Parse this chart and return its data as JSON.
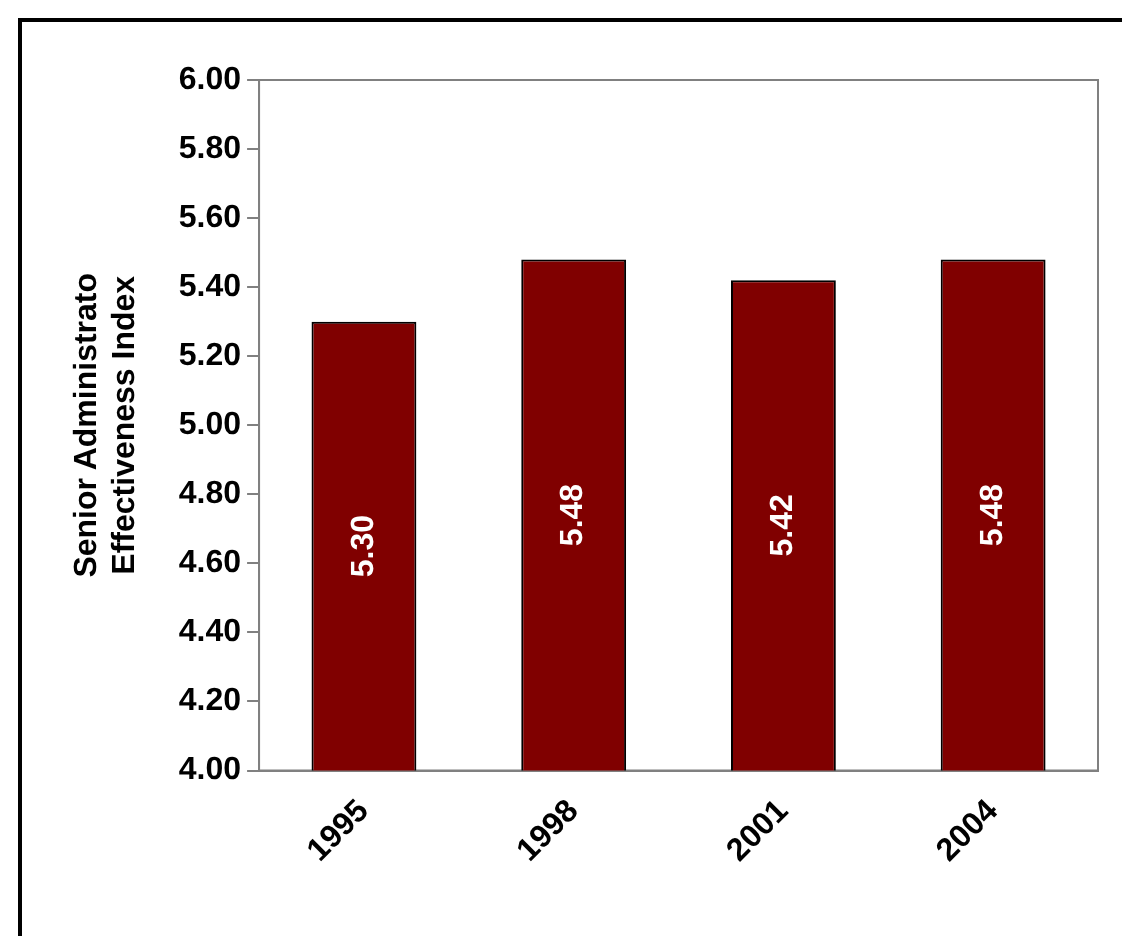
{
  "chart_data": {
    "type": "bar",
    "ylabel": "Senior Administrato\nEffectiveness Index",
    "categories": [
      "1995",
      "1998",
      "2001",
      "2004"
    ],
    "values": [
      5.3,
      5.48,
      5.42,
      5.48
    ],
    "value_labels": [
      "5.30",
      "5.48",
      "5.42",
      "5.48"
    ],
    "color": "#800000",
    "ylim": [
      4,
      6
    ],
    "yticks": [
      {
        "value": 4,
        "label": "4.00"
      },
      {
        "value": 4.2,
        "label": "4.20"
      },
      {
        "value": 4.4,
        "label": "4.40"
      },
      {
        "value": 4.6,
        "label": "4.60"
      },
      {
        "value": 4.8,
        "label": "4.80"
      },
      {
        "value": 5,
        "label": "5.00"
      },
      {
        "value": 5.2,
        "label": "5.20"
      },
      {
        "value": 5.4,
        "label": "5.40"
      },
      {
        "value": 5.6,
        "label": "5.60"
      },
      {
        "value": 5.8,
        "label": "5.80"
      },
      {
        "value": 6,
        "label": "6.00"
      }
    ],
    "grid": false,
    "legend": false
  }
}
